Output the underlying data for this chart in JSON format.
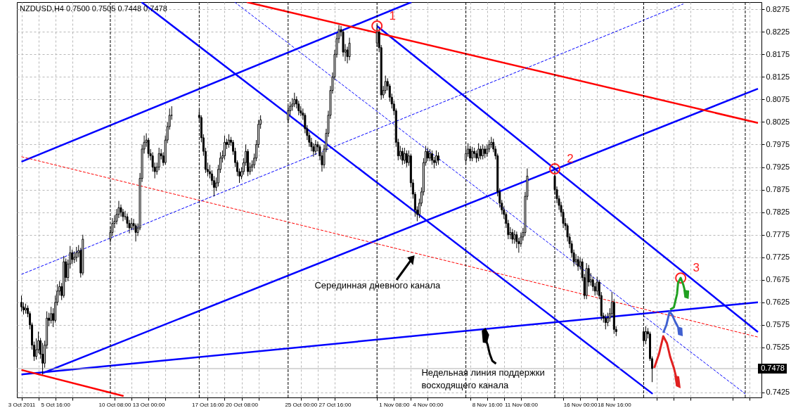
{
  "chart_data": {
    "type": "candlestick",
    "title": "NZDUSD,H4  0.7500 0.7505 0.7448 0.7478",
    "x": [
      "2011-10-03T00:00",
      "2011-10-03T04:00",
      "2011-10-03T08:00",
      "2011-10-03T12:00",
      "2011-10-03T16:00",
      "2011-10-03T20:00",
      "2011-10-04T00:00",
      "2011-10-04T04:00",
      "2011-10-04T08:00",
      "2011-10-04T12:00",
      "2011-10-04T16:00",
      "2011-10-04T20:00",
      "2011-10-05T00:00",
      "2011-10-05T04:00",
      "2011-10-05T08:00",
      "2011-10-05T12:00",
      "2011-10-05T16:00",
      "2011-10-05T20:00",
      "2011-10-06T00:00",
      "2011-10-06T04:00",
      "2011-10-06T08:00",
      "2011-10-06T12:00",
      "2011-10-06T16:00",
      "2011-10-06T20:00",
      "2011-10-07T00:00",
      "2011-10-07T04:00",
      "2011-10-07T08:00",
      "2011-10-07T12:00",
      "2011-10-07T16:00",
      "2011-10-07T20:00",
      "2011-10-10T00:00",
      "2011-10-10T04:00",
      "2011-10-10T08:00",
      "2011-10-10T12:00",
      "2011-10-10T16:00",
      "2011-10-10T20:00",
      "2011-10-11T00:00",
      "2011-10-11T04:00",
      "2011-10-11T08:00",
      "2011-10-11T12:00",
      "2011-10-11T16:00",
      "2011-10-11T20:00",
      "2011-10-12T00:00",
      "2011-10-12T04:00",
      "2011-10-12T08:00",
      "2011-10-12T12:00",
      "2011-10-12T16:00",
      "2011-10-12T20:00",
      "2011-10-13T00:00",
      "2011-10-13T04:00",
      "2011-10-13T08:00",
      "2011-10-13T12:00",
      "2011-10-13T16:00",
      "2011-10-13T20:00",
      "2011-10-14T00:00",
      "2011-10-14T04:00",
      "2011-10-14T08:00",
      "2011-10-14T12:00",
      "2011-10-14T16:00",
      "2011-10-14T20:00",
      "2011-10-17T00:00",
      "2011-10-17T04:00",
      "2011-10-17T08:00",
      "2011-10-17T12:00",
      "2011-10-17T16:00",
      "2011-10-17T20:00",
      "2011-10-18T00:00",
      "2011-10-18T04:00",
      "2011-10-18T08:00",
      "2011-10-18T12:00",
      "2011-10-18T16:00",
      "2011-10-18T20:00",
      "2011-10-19T00:00",
      "2011-10-19T04:00",
      "2011-10-19T08:00",
      "2011-10-19T12:00",
      "2011-10-19T16:00",
      "2011-10-19T20:00",
      "2011-10-20T00:00",
      "2011-10-20T04:00",
      "2011-10-20T08:00",
      "2011-10-20T12:00",
      "2011-10-20T16:00",
      "2011-10-20T20:00",
      "2011-10-21T00:00",
      "2011-10-21T04:00",
      "2011-10-21T08:00",
      "2011-10-21T12:00",
      "2011-10-21T16:00",
      "2011-10-21T20:00",
      "2011-10-24T00:00",
      "2011-10-24T04:00",
      "2011-10-24T08:00",
      "2011-10-24T12:00",
      "2011-10-24T16:00",
      "2011-10-24T20:00",
      "2011-10-25T00:00",
      "2011-10-25T04:00",
      "2011-10-25T08:00",
      "2011-10-25T12:00",
      "2011-10-25T16:00",
      "2011-10-25T20:00",
      "2011-10-26T00:00",
      "2011-10-26T04:00",
      "2011-10-26T08:00",
      "2011-10-26T12:00",
      "2011-10-26T16:00",
      "2011-10-26T20:00",
      "2011-10-27T00:00",
      "2011-10-27T04:00",
      "2011-10-27T08:00",
      "2011-10-27T12:00",
      "2011-10-27T16:00",
      "2011-10-27T20:00",
      "2011-10-28T00:00",
      "2011-10-28T04:00",
      "2011-10-28T08:00",
      "2011-10-28T12:00",
      "2011-10-28T16:00",
      "2011-10-28T20:00",
      "2011-10-31T00:00",
      "2011-10-31T04:00",
      "2011-10-31T08:00",
      "2011-10-31T12:00",
      "2011-10-31T16:00",
      "2011-10-31T20:00",
      "2011-11-01T00:00",
      "2011-11-01T04:00",
      "2011-11-01T08:00",
      "2011-11-01T12:00",
      "2011-11-01T16:00",
      "2011-11-01T20:00",
      "2011-11-02T00:00",
      "2011-11-02T04:00",
      "2011-11-02T08:00",
      "2011-11-02T12:00",
      "2011-11-02T16:00",
      "2011-11-02T20:00",
      "2011-11-03T00:00",
      "2011-11-03T04:00",
      "2011-11-03T08:00",
      "2011-11-03T12:00",
      "2011-11-03T16:00",
      "2011-11-03T20:00",
      "2011-11-04T00:00",
      "2011-11-04T04:00",
      "2011-11-04T08:00",
      "2011-11-04T12:00",
      "2011-11-04T16:00",
      "2011-11-04T20:00",
      "2011-11-07T00:00",
      "2011-11-07T04:00",
      "2011-11-07T08:00",
      "2011-11-07T12:00",
      "2011-11-07T16:00",
      "2011-11-07T20:00",
      "2011-11-08T00:00",
      "2011-11-08T04:00",
      "2011-11-08T08:00",
      "2011-11-08T12:00",
      "2011-11-08T16:00",
      "2011-11-08T20:00",
      "2011-11-09T00:00",
      "2011-11-09T04:00",
      "2011-11-09T08:00",
      "2011-11-09T12:00",
      "2011-11-09T16:00",
      "2011-11-09T20:00",
      "2011-11-10T00:00",
      "2011-11-10T04:00",
      "2011-11-10T08:00",
      "2011-11-10T12:00",
      "2011-11-10T16:00",
      "2011-11-10T20:00",
      "2011-11-11T00:00",
      "2011-11-11T04:00",
      "2011-11-11T08:00",
      "2011-11-11T12:00",
      "2011-11-11T16:00",
      "2011-11-11T20:00",
      "2011-11-14T00:00",
      "2011-11-14T04:00",
      "2011-11-14T08:00",
      "2011-11-14T12:00",
      "2011-11-14T16:00",
      "2011-11-14T20:00",
      "2011-11-15T00:00",
      "2011-11-15T04:00",
      "2011-11-15T08:00",
      "2011-11-15T12:00",
      "2011-11-15T16:00",
      "2011-11-15T20:00",
      "2011-11-16T00:00",
      "2011-11-16T04:00",
      "2011-11-16T08:00",
      "2011-11-16T12:00",
      "2011-11-16T16:00",
      "2011-11-16T20:00",
      "2011-11-17T00:00",
      "2011-11-17T04:00",
      "2011-11-17T08:00",
      "2011-11-17T12:00",
      "2011-11-17T16:00",
      "2011-11-17T20:00",
      "2011-11-18T00:00",
      "2011-11-18T04:00",
      "2011-11-18T08:00",
      "2011-11-18T12:00",
      "2011-11-18T16:00",
      "2011-11-18T20:00",
      "2011-11-21T00:00",
      "2011-11-21T04:00",
      "2011-11-21T08:00",
      "2011-11-21T12:00",
      "2011-11-21T16:00"
    ],
    "ohlc": [
      [
        0.7625,
        0.764,
        0.7605,
        0.7615
      ],
      [
        0.7615,
        0.7625,
        0.7598,
        0.7608
      ],
      [
        0.7608,
        0.7622,
        0.76,
        0.7612
      ],
      [
        0.7612,
        0.7618,
        0.7592,
        0.76
      ],
      [
        0.76,
        0.7605,
        0.7565,
        0.7575
      ],
      [
        0.7575,
        0.758,
        0.752,
        0.753
      ],
      [
        0.753,
        0.7538,
        0.7495,
        0.7505
      ],
      [
        0.7505,
        0.7545,
        0.7498,
        0.752
      ],
      [
        0.752,
        0.756,
        0.7512,
        0.754
      ],
      [
        0.754,
        0.7546,
        0.75,
        0.751
      ],
      [
        0.751,
        0.7535,
        0.7465,
        0.749
      ],
      [
        0.749,
        0.754,
        0.748,
        0.753
      ],
      [
        0.753,
        0.7605,
        0.7522,
        0.759
      ],
      [
        0.759,
        0.7602,
        0.7572,
        0.7585
      ],
      [
        0.7585,
        0.7615,
        0.7578,
        0.76
      ],
      [
        0.76,
        0.7612,
        0.757,
        0.7585
      ],
      [
        0.7585,
        0.764,
        0.758,
        0.7625
      ],
      [
        0.7625,
        0.7665,
        0.7618,
        0.765
      ],
      [
        0.765,
        0.7672,
        0.764,
        0.766
      ],
      [
        0.766,
        0.7668,
        0.763,
        0.764
      ],
      [
        0.764,
        0.7728,
        0.7635,
        0.7715
      ],
      [
        0.7715,
        0.7722,
        0.767,
        0.768
      ],
      [
        0.768,
        0.772,
        0.7672,
        0.771
      ],
      [
        0.771,
        0.775,
        0.77,
        0.7735
      ],
      [
        0.7735,
        0.7742,
        0.771,
        0.772
      ],
      [
        0.772,
        0.7738,
        0.7712,
        0.7725
      ],
      [
        0.7725,
        0.7748,
        0.7715,
        0.7735
      ],
      [
        0.7735,
        0.7752,
        0.7725,
        0.774
      ],
      [
        0.774,
        0.7746,
        0.768,
        0.769
      ],
      [
        0.769,
        0.7775,
        0.7685,
        0.7765
      ],
      [
        0.7765,
        0.7792,
        0.7758,
        0.778
      ],
      [
        0.778,
        0.7812,
        0.7772,
        0.78
      ],
      [
        0.78,
        0.7818,
        0.779,
        0.7805
      ],
      [
        0.7805,
        0.7832,
        0.7798,
        0.782
      ],
      [
        0.782,
        0.785,
        0.7812,
        0.7835
      ],
      [
        0.7835,
        0.7842,
        0.7815,
        0.7825
      ],
      [
        0.7825,
        0.7832,
        0.7805,
        0.7815
      ],
      [
        0.7815,
        0.7828,
        0.7808,
        0.7815
      ],
      [
        0.7815,
        0.7822,
        0.779,
        0.78
      ],
      [
        0.78,
        0.7808,
        0.7778,
        0.779
      ],
      [
        0.779,
        0.7812,
        0.7785,
        0.78
      ],
      [
        0.78,
        0.781,
        0.7785,
        0.7795
      ],
      [
        0.7795,
        0.78,
        0.776,
        0.778
      ],
      [
        0.778,
        0.78,
        0.7772,
        0.779
      ],
      [
        0.779,
        0.7912,
        0.7785,
        0.79
      ],
      [
        0.79,
        0.7975,
        0.7892,
        0.7965
      ],
      [
        0.7965,
        0.7995,
        0.7955,
        0.798
      ],
      [
        0.798,
        0.8,
        0.797,
        0.7985
      ],
      [
        0.7985,
        0.799,
        0.7945,
        0.7955
      ],
      [
        0.7955,
        0.7965,
        0.794,
        0.795
      ],
      [
        0.795,
        0.7958,
        0.7915,
        0.7925
      ],
      [
        0.7925,
        0.7935,
        0.79,
        0.7915
      ],
      [
        0.7915,
        0.7935,
        0.7908,
        0.7925
      ],
      [
        0.7925,
        0.7968,
        0.7918,
        0.7955
      ],
      [
        0.7955,
        0.7965,
        0.7942,
        0.795
      ],
      [
        0.795,
        0.7958,
        0.7928,
        0.7935
      ],
      [
        0.7935,
        0.7995,
        0.793,
        0.7985
      ],
      [
        0.7985,
        0.8025,
        0.7978,
        0.8015
      ],
      [
        0.8015,
        0.8055,
        0.8008,
        0.804
      ],
      [
        0.804,
        0.806,
        0.803,
        0.804
      ],
      [
        0.804,
        0.8052,
        0.8025,
        0.8035
      ],
      [
        0.8035,
        0.804,
        0.798,
        0.799
      ],
      [
        0.799,
        0.7998,
        0.795,
        0.796
      ],
      [
        0.796,
        0.7968,
        0.7912,
        0.792
      ],
      [
        0.792,
        0.7935,
        0.7905,
        0.7915
      ],
      [
        0.7915,
        0.793,
        0.79,
        0.791
      ],
      [
        0.791,
        0.7918,
        0.7885,
        0.7895
      ],
      [
        0.7895,
        0.7905,
        0.786,
        0.788
      ],
      [
        0.788,
        0.7902,
        0.7872,
        0.789
      ],
      [
        0.789,
        0.793,
        0.7882,
        0.792
      ],
      [
        0.792,
        0.7958,
        0.7912,
        0.7945
      ],
      [
        0.7945,
        0.7962,
        0.7935,
        0.795
      ],
      [
        0.795,
        0.7995,
        0.7942,
        0.798
      ],
      [
        0.798,
        0.7988,
        0.7965,
        0.7975
      ],
      [
        0.7975,
        0.7998,
        0.7968,
        0.7985
      ],
      [
        0.7985,
        0.7992,
        0.7972,
        0.798
      ],
      [
        0.798,
        0.7985,
        0.7952,
        0.796
      ],
      [
        0.796,
        0.7968,
        0.7925,
        0.7935
      ],
      [
        0.7935,
        0.794,
        0.7905,
        0.7915
      ],
      [
        0.7915,
        0.7922,
        0.789,
        0.7905
      ],
      [
        0.7905,
        0.7925,
        0.7898,
        0.7915
      ],
      [
        0.7915,
        0.7945,
        0.7908,
        0.7935
      ],
      [
        0.7935,
        0.7975,
        0.7928,
        0.796
      ],
      [
        0.796,
        0.7965,
        0.7905,
        0.7915
      ],
      [
        0.7915,
        0.7935,
        0.7908,
        0.7925
      ],
      [
        0.7925,
        0.794,
        0.7915,
        0.793
      ],
      [
        0.793,
        0.7955,
        0.7922,
        0.7945
      ],
      [
        0.7945,
        0.7985,
        0.7938,
        0.7975
      ],
      [
        0.7975,
        0.803,
        0.7968,
        0.802
      ],
      [
        0.802,
        0.804,
        0.801,
        0.803
      ],
      [
        0.803,
        0.8062,
        0.8022,
        0.805
      ],
      [
        0.805,
        0.807,
        0.804,
        0.806
      ],
      [
        0.806,
        0.8078,
        0.805,
        0.8065
      ],
      [
        0.8065,
        0.809,
        0.8058,
        0.8075
      ],
      [
        0.8075,
        0.8082,
        0.8055,
        0.8065
      ],
      [
        0.8065,
        0.8072,
        0.804,
        0.805
      ],
      [
        0.805,
        0.806,
        0.8038,
        0.8045
      ],
      [
        0.8045,
        0.8055,
        0.803,
        0.804
      ],
      [
        0.804,
        0.8045,
        0.8,
        0.801
      ],
      [
        0.801,
        0.8018,
        0.7985,
        0.7995
      ],
      [
        0.7995,
        0.8002,
        0.797,
        0.798
      ],
      [
        0.798,
        0.799,
        0.796,
        0.797
      ],
      [
        0.797,
        0.7978,
        0.7948,
        0.796
      ],
      [
        0.796,
        0.7985,
        0.7952,
        0.7975
      ],
      [
        0.7975,
        0.7982,
        0.796,
        0.797
      ],
      [
        0.797,
        0.7975,
        0.794,
        0.795
      ],
      [
        0.795,
        0.7958,
        0.7915,
        0.793
      ],
      [
        0.793,
        0.7975,
        0.7922,
        0.7965
      ],
      [
        0.7965,
        0.801,
        0.7958,
        0.8
      ],
      [
        0.8,
        0.805,
        0.7992,
        0.804
      ],
      [
        0.804,
        0.8105,
        0.8032,
        0.8095
      ],
      [
        0.8095,
        0.8135,
        0.8088,
        0.8125
      ],
      [
        0.8125,
        0.8185,
        0.8118,
        0.8175
      ],
      [
        0.8175,
        0.8222,
        0.8168,
        0.821
      ],
      [
        0.821,
        0.824,
        0.82,
        0.823
      ],
      [
        0.823,
        0.8238,
        0.8215,
        0.8225
      ],
      [
        0.8225,
        0.823,
        0.817,
        0.818
      ],
      [
        0.818,
        0.8198,
        0.816,
        0.8185
      ],
      [
        0.8185,
        0.8192,
        0.8155,
        0.817
      ],
      [
        0.817,
        0.8212,
        0.8162,
        0.82
      ],
      [
        0.82,
        0.824,
        0.8192,
        0.8225
      ],
      [
        0.8225,
        0.8232,
        0.818,
        0.819
      ],
      [
        0.819,
        0.8196,
        0.8075,
        0.8085
      ],
      [
        0.8085,
        0.8105,
        0.8078,
        0.8095
      ],
      [
        0.8095,
        0.8128,
        0.8088,
        0.8115
      ],
      [
        0.8115,
        0.8122,
        0.8095,
        0.8105
      ],
      [
        0.8105,
        0.811,
        0.807,
        0.808
      ],
      [
        0.808,
        0.8088,
        0.8055,
        0.8065
      ],
      [
        0.8065,
        0.8072,
        0.804,
        0.805
      ],
      [
        0.805,
        0.8055,
        0.797,
        0.798
      ],
      [
        0.798,
        0.7988,
        0.794,
        0.795
      ],
      [
        0.795,
        0.7972,
        0.7942,
        0.796
      ],
      [
        0.796,
        0.7968,
        0.793,
        0.794
      ],
      [
        0.794,
        0.7968,
        0.7932,
        0.7955
      ],
      [
        0.7955,
        0.7962,
        0.7925,
        0.7935
      ],
      [
        0.7935,
        0.7962,
        0.7928,
        0.795
      ],
      [
        0.795,
        0.7955,
        0.788,
        0.789
      ],
      [
        0.789,
        0.7898,
        0.7855,
        0.7865
      ],
      [
        0.7865,
        0.787,
        0.7815,
        0.783
      ],
      [
        0.783,
        0.7838,
        0.7805,
        0.782
      ],
      [
        0.782,
        0.7855,
        0.7812,
        0.7845
      ],
      [
        0.7845,
        0.788,
        0.7838,
        0.787
      ],
      [
        0.787,
        0.7945,
        0.7862,
        0.7935
      ],
      [
        0.7935,
        0.7972,
        0.7928,
        0.796
      ],
      [
        0.796,
        0.7968,
        0.7938,
        0.7945
      ],
      [
        0.7945,
        0.7965,
        0.7938,
        0.7955
      ],
      [
        0.7955,
        0.7962,
        0.793,
        0.794
      ],
      [
        0.794,
        0.7948,
        0.7922,
        0.7935
      ],
      [
        0.7935,
        0.7962,
        0.7928,
        0.795
      ],
      [
        0.795,
        0.7958,
        0.793,
        0.794
      ],
      [
        0.794,
        0.7968,
        0.7932,
        0.7955
      ],
      [
        0.7955,
        0.7978,
        0.7948,
        0.7965
      ],
      [
        0.7965,
        0.7972,
        0.7938,
        0.7945
      ],
      [
        0.7945,
        0.797,
        0.7938,
        0.796
      ],
      [
        0.796,
        0.7968,
        0.7945,
        0.7955
      ],
      [
        0.7955,
        0.7962,
        0.7935,
        0.7945
      ],
      [
        0.7945,
        0.7978,
        0.7938,
        0.7965
      ],
      [
        0.7965,
        0.7972,
        0.7942,
        0.795
      ],
      [
        0.795,
        0.7975,
        0.7942,
        0.7965
      ],
      [
        0.7965,
        0.7972,
        0.7945,
        0.7955
      ],
      [
        0.7955,
        0.7975,
        0.7948,
        0.7965
      ],
      [
        0.7965,
        0.7985,
        0.7958,
        0.7975
      ],
      [
        0.7975,
        0.7992,
        0.7968,
        0.798
      ],
      [
        0.798,
        0.7988,
        0.7958,
        0.7965
      ],
      [
        0.7965,
        0.7972,
        0.7942,
        0.795
      ],
      [
        0.795,
        0.7955,
        0.786,
        0.787
      ],
      [
        0.787,
        0.7878,
        0.7835,
        0.7845
      ],
      [
        0.7845,
        0.7852,
        0.782,
        0.783
      ],
      [
        0.783,
        0.7838,
        0.781,
        0.782
      ],
      [
        0.782,
        0.7825,
        0.779,
        0.78
      ],
      [
        0.78,
        0.7808,
        0.7765,
        0.7775
      ],
      [
        0.7775,
        0.7792,
        0.7765,
        0.778
      ],
      [
        0.778,
        0.7788,
        0.7755,
        0.7765
      ],
      [
        0.7765,
        0.7785,
        0.7755,
        0.7775
      ],
      [
        0.7775,
        0.7782,
        0.7745,
        0.776
      ],
      [
        0.776,
        0.7768,
        0.7735,
        0.7755
      ],
      [
        0.7755,
        0.778,
        0.7748,
        0.777
      ],
      [
        0.777,
        0.779,
        0.7762,
        0.778
      ],
      [
        0.778,
        0.787,
        0.7772,
        0.786
      ],
      [
        0.786,
        0.7922,
        0.7852,
        0.7905
      ],
      [
        0.7905,
        0.7915,
        0.7865,
        0.7875
      ],
      [
        0.7875,
        0.7882,
        0.7845,
        0.7855
      ],
      [
        0.7855,
        0.7862,
        0.783,
        0.784
      ],
      [
        0.784,
        0.7848,
        0.7815,
        0.7825
      ],
      [
        0.7825,
        0.7832,
        0.779,
        0.78
      ],
      [
        0.78,
        0.7812,
        0.7785,
        0.7795
      ],
      [
        0.7795,
        0.78,
        0.776,
        0.777
      ],
      [
        0.777,
        0.7778,
        0.7745,
        0.7755
      ],
      [
        0.7755,
        0.7762,
        0.7725,
        0.7735
      ],
      [
        0.7735,
        0.7742,
        0.7705,
        0.7715
      ],
      [
        0.7715,
        0.7732,
        0.7708,
        0.772
      ],
      [
        0.772,
        0.7728,
        0.7695,
        0.7705
      ],
      [
        0.7705,
        0.7725,
        0.7698,
        0.7715
      ],
      [
        0.7715,
        0.7722,
        0.7672,
        0.768
      ],
      [
        0.768,
        0.7688,
        0.7632,
        0.764
      ],
      [
        0.764,
        0.7712,
        0.7632,
        0.77
      ],
      [
        0.77,
        0.7708,
        0.766,
        0.767
      ],
      [
        0.767,
        0.769,
        0.7662,
        0.7675
      ],
      [
        0.7675,
        0.7682,
        0.765,
        0.766
      ],
      [
        0.766,
        0.7668,
        0.764,
        0.765
      ],
      [
        0.765,
        0.7682,
        0.7642,
        0.767
      ],
      [
        0.767,
        0.7675,
        0.7632,
        0.764
      ],
      [
        0.764,
        0.7648,
        0.7585,
        0.7595
      ],
      [
        0.7595,
        0.7602,
        0.758,
        0.759
      ],
      [
        0.759,
        0.7598,
        0.7565,
        0.758
      ],
      [
        0.758,
        0.7602,
        0.7572,
        0.759
      ],
      [
        0.759,
        0.7612,
        0.7582,
        0.76
      ],
      [
        0.76,
        0.7648,
        0.7592,
        0.7625
      ],
      [
        0.7625,
        0.7632,
        0.7555,
        0.7565
      ],
      [
        0.7565,
        0.7572,
        0.755,
        0.756
      ],
      [
        0.756,
        0.7568,
        0.753,
        0.754
      ],
      [
        0.754,
        0.7572,
        0.7532,
        0.756
      ],
      [
        0.756,
        0.7568,
        0.7545,
        0.7555
      ],
      [
        0.7555,
        0.756,
        0.7495,
        0.75
      ],
      [
        0.75,
        0.7505,
        0.7448,
        0.7478
      ]
    ],
    "series": [
      {
        "type": "line",
        "color": "#0000ff",
        "line_style": "solid",
        "x": [
          "2011-10-03T00:00",
          "2011-11-02T17:00"
        ],
        "values": [
          0.7937,
          0.8291
        ]
      },
      {
        "type": "line",
        "color": "#0000ff",
        "line_style": "solid",
        "x": [
          "2011-10-12T11:00",
          "2011-11-21T17:00"
        ],
        "values": [
          0.8291,
          0.7422
        ]
      },
      {
        "type": "line",
        "color": "#0000ff",
        "line_style": "solid",
        "x": [
          "2011-10-31T00:00",
          "2011-11-30T00:00"
        ],
        "values": [
          0.8238,
          0.7559
        ]
      },
      {
        "type": "line",
        "color": "#0000ff",
        "line_style": "solid",
        "x": [
          "2011-10-04T16:00",
          "2011-11-30T00:00"
        ],
        "values": [
          0.7468,
          0.8099
        ]
      },
      {
        "type": "line",
        "color": "#0000ff",
        "line_style": "solid",
        "x": [
          "2011-10-03T00:00",
          "2011-11-30T00:00"
        ],
        "values": [
          0.7465,
          0.7625
        ]
      },
      {
        "type": "line",
        "color": "#ff0000",
        "line_style": "solid",
        "x": [
          "2011-10-20T18:00",
          "2011-11-30T00:00"
        ],
        "values": [
          0.8291,
          0.8023
        ]
      },
      {
        "type": "line",
        "color": "#ff0000",
        "line_style": "solid",
        "x": [
          "2011-10-03T00:00",
          "2011-10-11T01:00"
        ],
        "values": [
          0.7475,
          0.7417
        ]
      },
      {
        "type": "line",
        "color": "#ff0000",
        "line_style": "dashed",
        "x": [
          "2011-10-03T00:00",
          "2011-11-30T00:00"
        ],
        "values": [
          0.7948,
          0.7548
        ]
      },
      {
        "type": "line",
        "color": "#0000ff",
        "line_style": "dashed",
        "x": [
          "2011-10-03T00:00",
          "2011-11-24T03:00"
        ],
        "values": [
          0.7687,
          0.8287
        ]
      },
      {
        "type": "line",
        "color": "#0000ff",
        "line_style": "dashed",
        "x": [
          "2011-10-19T19:00",
          "2011-11-29T00:00"
        ],
        "values": [
          0.8291,
          0.7422
        ]
      }
    ],
    "xlim": [
      "2011-10-02T22:00",
      "2011-11-30T00:00"
    ],
    "xticks": [
      {
        "value": "2011-10-03T00:00",
        "label": "3 Oct 2011"
      },
      {
        "value": "2011-10-04T08:00",
        "label": null
      },
      {
        "value": "2011-10-05T16:00",
        "label": "5 Oct 16:00"
      },
      {
        "value": "2011-10-07T00:00",
        "label": null
      },
      {
        "value": "2011-10-10T08:00",
        "label": "10 Oct 08:00"
      },
      {
        "value": "2011-10-11T16:00",
        "label": null
      },
      {
        "value": "2011-10-13T00:00",
        "label": "13 Oct 00:00"
      },
      {
        "value": "2011-10-14T08:00",
        "label": null
      },
      {
        "value": "2011-10-17T16:00",
        "label": "17 Oct 16:00"
      },
      {
        "value": "2011-10-19T00:00",
        "label": null
      },
      {
        "value": "2011-10-20T08:00",
        "label": "20 Oct 08:00"
      },
      {
        "value": "2011-10-21T16:00",
        "label": null
      },
      {
        "value": "2011-10-25T00:00",
        "label": "25 Oct 00:00"
      },
      {
        "value": "2011-10-26T08:00",
        "label": null
      },
      {
        "value": "2011-10-27T16:00",
        "label": "27 Oct 16:00"
      },
      {
        "value": "2011-10-31T00:00",
        "label": null
      },
      {
        "value": "2011-11-01T08:00",
        "label": "1 Nov 08:00"
      },
      {
        "value": "2011-11-02T16:00",
        "label": null
      },
      {
        "value": "2011-11-04T00:00",
        "label": "4 Nov 00:00"
      },
      {
        "value": "2011-11-07T08:00",
        "label": null
      },
      {
        "value": "2011-11-08T16:00",
        "label": "8 Nov 16:00"
      },
      {
        "value": "2011-11-10T00:00",
        "label": null
      },
      {
        "value": "2011-11-11T08:00",
        "label": "11 Nov 08:00"
      },
      {
        "value": "2011-11-14T16:00",
        "label": null
      },
      {
        "value": "2011-11-16T00:00",
        "label": "16 Nov 00:00"
      },
      {
        "value": "2011-11-17T08:00",
        "label": null
      },
      {
        "value": "2011-11-18T16:00",
        "label": "18 Nov 16:00"
      },
      {
        "value": "2011-11-22T00:00",
        "label": null
      },
      {
        "value": "2011-11-23T08:00",
        "label": null
      },
      {
        "value": "2011-11-24T16:00",
        "label": null
      },
      {
        "value": "2011-11-28T00:00",
        "label": null
      },
      {
        "value": "2011-11-29T08:00",
        "label": null
      }
    ],
    "ylim": [
      0.7414,
      0.8291
    ],
    "yticks": [
      0.7425,
      0.7525,
      0.7575,
      0.7625,
      0.7675,
      0.7725,
      0.7775,
      0.7825,
      0.7875,
      0.7925,
      0.7975,
      0.8025,
      0.8075,
      0.8125,
      0.8175,
      0.8225,
      0.8275
    ],
    "grid": true,
    "ref_lines": [
      {
        "axis": "x",
        "value": "2011-10-10T00:00",
        "color": "#000000",
        "line_style": "dashed"
      },
      {
        "axis": "x",
        "value": "2011-10-17T00:00",
        "color": "#000000",
        "line_style": "dashed"
      },
      {
        "axis": "x",
        "value": "2011-10-24T00:00",
        "color": "#000000",
        "line_style": "dashed"
      },
      {
        "axis": "x",
        "value": "2011-10-31T00:00",
        "color": "#000000",
        "line_style": "dashed"
      },
      {
        "axis": "x",
        "value": "2011-11-07T00:00",
        "color": "#000000",
        "line_style": "dashed"
      },
      {
        "axis": "x",
        "value": "2011-11-14T00:00",
        "color": "#000000",
        "line_style": "dashed"
      },
      {
        "axis": "x",
        "value": "2011-11-21T00:00",
        "color": "#000000",
        "line_style": "dashed"
      },
      {
        "axis": "x",
        "value": "2011-11-29T00:00",
        "color": "#000000",
        "line_style": "dashed"
      },
      {
        "axis": "y",
        "value": 0.7478,
        "label": "0.7478",
        "color": "#b0b0b0",
        "line_style": "solid"
      }
    ],
    "annotations": [
      {
        "text": "1",
        "x": "2011-10-31T00:00",
        "y": 0.8238
      },
      {
        "text": "2",
        "x": "2011-11-14T00:00",
        "y": 0.7921
      },
      {
        "text": "3",
        "x": "2011-11-23T22:00",
        "y": 0.7679
      },
      "Серединная дневного канала",
      "Недельная линия поддержки восходящего канала"
    ]
  }
}
